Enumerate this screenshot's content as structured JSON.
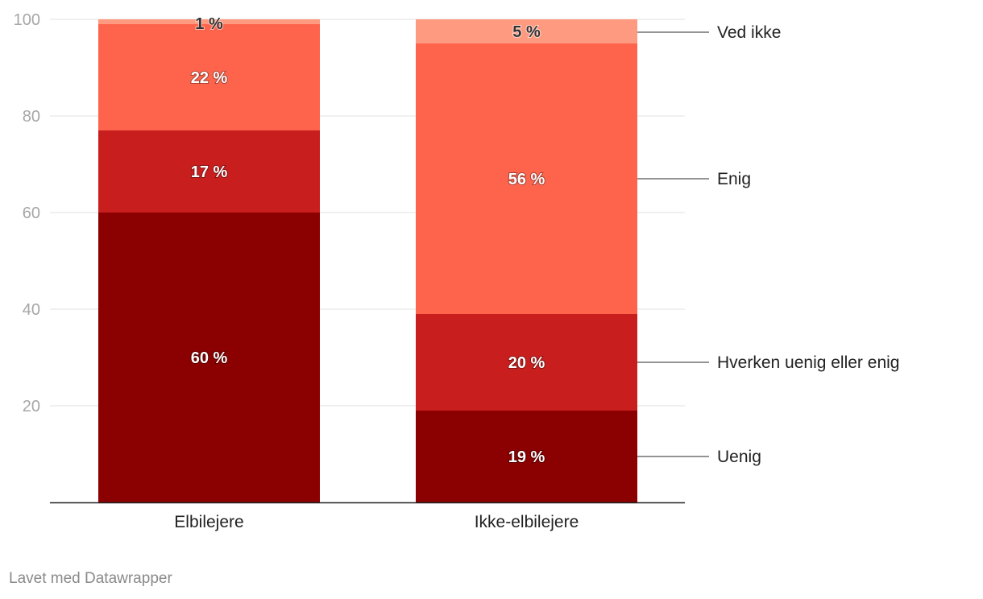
{
  "chart_data": {
    "type": "bar",
    "stacked": true,
    "categories": [
      "Elbilejere",
      "Ikke-elbilejere"
    ],
    "series": [
      {
        "name": "Uenig",
        "values": [
          60,
          19
        ],
        "color": "#8b0000",
        "labels": [
          "60 %",
          "19 %"
        ]
      },
      {
        "name": "Hverken uenig eller enig",
        "values": [
          17,
          20
        ],
        "color": "#c81e1e",
        "labels": [
          "17 %",
          "20 %"
        ]
      },
      {
        "name": "Enig",
        "values": [
          22,
          56
        ],
        "color": "#fe634c",
        "labels": [
          "22 %",
          "56 %"
        ]
      },
      {
        "name": "Ved ikke",
        "values": [
          1,
          5
        ],
        "color": "#fe9a80",
        "labels": [
          "1 %",
          "5 %"
        ]
      }
    ],
    "ylim": [
      0,
      100
    ],
    "yticks": [
      20,
      40,
      60,
      80,
      100
    ],
    "ytick_labels": [
      "20",
      "40",
      "60",
      "80",
      "100"
    ],
    "grid": true,
    "legend": "right"
  },
  "footer": "Lavet med Datawrapper"
}
